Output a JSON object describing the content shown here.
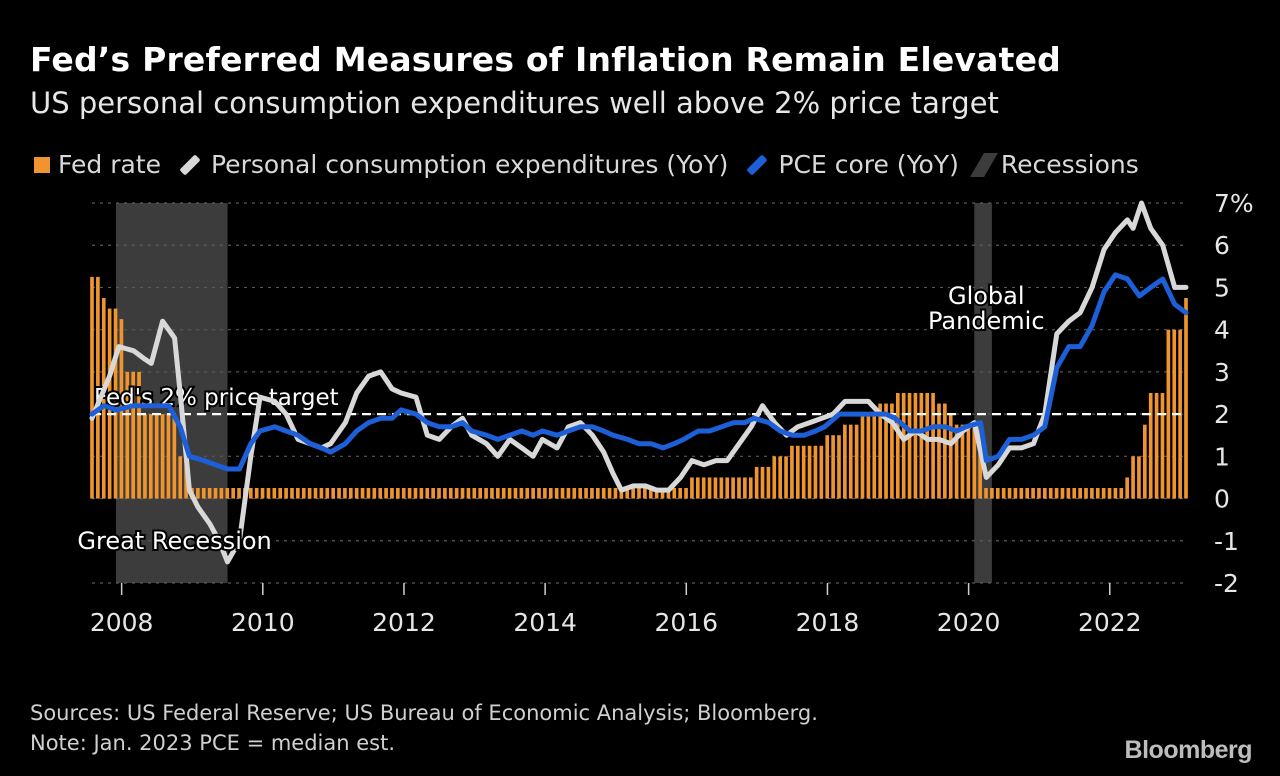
{
  "header": {
    "title": "Fed’s Preferred Measures of Inflation Remain Elevated",
    "subtitle": "US personal consumption expenditures well above 2% price target"
  },
  "legend": {
    "items": [
      {
        "label": "Fed rate",
        "color": "#f0952e"
      },
      {
        "label": "Personal consumption expenditures (YoY)",
        "color": "#d8d8d8"
      },
      {
        "label": "PCE core (YoY)",
        "color": "#1c5fd6"
      },
      {
        "label": "Recessions",
        "color": "#3c3c3c"
      }
    ]
  },
  "footer": {
    "sources": "Sources: US Federal Reserve; US Bureau of Economic Analysis; Bloomberg.",
    "note": "Note: Jan. 2023 PCE = median est.",
    "logo": "Bloomberg"
  },
  "chart_data": {
    "type": "bar",
    "xlim": [
      2007.58,
      2023.08
    ],
    "ylim": [
      -2,
      7
    ],
    "y_ticks": [
      7,
      6,
      5,
      4,
      3,
      2,
      1,
      0,
      -1,
      -2
    ],
    "y_tick_labels": [
      "7%",
      "6",
      "5",
      "4",
      "3",
      "2",
      "1",
      "0",
      "-1",
      "-2"
    ],
    "x_ticks": [
      2008,
      2010,
      2012,
      2014,
      2016,
      2018,
      2020,
      2022
    ],
    "x_tick_labels": [
      "2008",
      "2010",
      "2012",
      "2014",
      "2016",
      "2018",
      "2020",
      "2022"
    ],
    "grid": true,
    "colors": {
      "fed": "#f0952e",
      "pce": "#d8d8d8",
      "core": "#1c5fd6",
      "recession": "#3c3c3c",
      "target": "#ffffff"
    },
    "recessions": [
      {
        "start": 2007.92,
        "end": 2009.5
      },
      {
        "start": 2020.08,
        "end": 2020.33
      }
    ],
    "reference_line": {
      "value": 2,
      "label": "Fed's 2% price target"
    },
    "annotations": [
      {
        "label": "Great Recession",
        "x": 2008.75,
        "y": -1.0
      },
      {
        "label": "Global",
        "x": 2020.25,
        "y": 4.8
      },
      {
        "label": "Pandemic",
        "x": 2020.25,
        "y": 4.2
      }
    ],
    "fed_rate": {
      "name": "Fed rate",
      "points": [
        [
          2007.58,
          5.25
        ],
        [
          2007.67,
          4.75
        ],
        [
          2007.83,
          4.5
        ],
        [
          2007.92,
          4.25
        ],
        [
          2008.0,
          3.0
        ],
        [
          2008.17,
          3.0
        ],
        [
          2008.33,
          2.0
        ],
        [
          2008.83,
          1.0
        ],
        [
          2008.96,
          0.25
        ],
        [
          2015.92,
          0.25
        ],
        [
          2016.0,
          0.5
        ],
        [
          2016.92,
          0.75
        ],
        [
          2017.17,
          1.0
        ],
        [
          2017.42,
          1.25
        ],
        [
          2017.92,
          1.5
        ],
        [
          2018.17,
          1.75
        ],
        [
          2018.42,
          2.0
        ],
        [
          2018.67,
          2.25
        ],
        [
          2018.96,
          2.5
        ],
        [
          2019.58,
          2.25
        ],
        [
          2019.67,
          2.0
        ],
        [
          2019.83,
          1.75
        ],
        [
          2020.17,
          0.25
        ],
        [
          2022.17,
          0.5
        ],
        [
          2022.33,
          1.0
        ],
        [
          2022.42,
          1.75
        ],
        [
          2022.58,
          2.5
        ],
        [
          2022.75,
          3.25
        ],
        [
          2022.83,
          4.0
        ],
        [
          2023.0,
          4.5
        ],
        [
          2023.08,
          4.75
        ]
      ]
    },
    "series": [
      {
        "name": "Personal consumption expenditures (YoY)",
        "points": [
          [
            2007.58,
            1.9
          ],
          [
            2007.83,
            2.9
          ],
          [
            2007.96,
            3.6
          ],
          [
            2008.17,
            3.5
          ],
          [
            2008.33,
            3.3
          ],
          [
            2008.42,
            3.2
          ],
          [
            2008.58,
            4.2
          ],
          [
            2008.75,
            3.8
          ],
          [
            2008.83,
            2.5
          ],
          [
            2008.96,
            0.2
          ],
          [
            2009.08,
            -0.2
          ],
          [
            2009.25,
            -0.6
          ],
          [
            2009.38,
            -1.0
          ],
          [
            2009.5,
            -1.5
          ],
          [
            2009.67,
            -1.0
          ],
          [
            2009.83,
            1.0
          ],
          [
            2009.96,
            2.4
          ],
          [
            2010.17,
            2.3
          ],
          [
            2010.33,
            2.0
          ],
          [
            2010.5,
            1.4
          ],
          [
            2010.67,
            1.3
          ],
          [
            2010.83,
            1.2
          ],
          [
            2010.96,
            1.3
          ],
          [
            2011.17,
            1.8
          ],
          [
            2011.33,
            2.5
          ],
          [
            2011.5,
            2.9
          ],
          [
            2011.67,
            3.0
          ],
          [
            2011.83,
            2.6
          ],
          [
            2011.96,
            2.5
          ],
          [
            2012.17,
            2.4
          ],
          [
            2012.33,
            1.5
          ],
          [
            2012.5,
            1.4
          ],
          [
            2012.67,
            1.7
          ],
          [
            2012.83,
            1.9
          ],
          [
            2012.96,
            1.5
          ],
          [
            2013.17,
            1.3
          ],
          [
            2013.33,
            1.0
          ],
          [
            2013.5,
            1.4
          ],
          [
            2013.67,
            1.2
          ],
          [
            2013.83,
            1.0
          ],
          [
            2013.96,
            1.4
          ],
          [
            2014.17,
            1.2
          ],
          [
            2014.33,
            1.7
          ],
          [
            2014.5,
            1.8
          ],
          [
            2014.67,
            1.5
          ],
          [
            2014.83,
            1.1
          ],
          [
            2014.96,
            0.6
          ],
          [
            2015.08,
            0.2
          ],
          [
            2015.25,
            0.3
          ],
          [
            2015.42,
            0.3
          ],
          [
            2015.58,
            0.2
          ],
          [
            2015.75,
            0.2
          ],
          [
            2015.92,
            0.5
          ],
          [
            2016.08,
            0.9
          ],
          [
            2016.25,
            0.8
          ],
          [
            2016.42,
            0.9
          ],
          [
            2016.58,
            0.9
          ],
          [
            2016.75,
            1.3
          ],
          [
            2016.92,
            1.7
          ],
          [
            2017.08,
            2.2
          ],
          [
            2017.25,
            1.8
          ],
          [
            2017.42,
            1.5
          ],
          [
            2017.58,
            1.7
          ],
          [
            2017.75,
            1.8
          ],
          [
            2017.92,
            1.9
          ],
          [
            2018.08,
            2.0
          ],
          [
            2018.25,
            2.3
          ],
          [
            2018.42,
            2.3
          ],
          [
            2018.58,
            2.3
          ],
          [
            2018.75,
            2.0
          ],
          [
            2018.92,
            1.8
          ],
          [
            2019.08,
            1.4
          ],
          [
            2019.25,
            1.6
          ],
          [
            2019.42,
            1.4
          ],
          [
            2019.58,
            1.4
          ],
          [
            2019.75,
            1.3
          ],
          [
            2019.92,
            1.6
          ],
          [
            2020.08,
            1.8
          ],
          [
            2020.25,
            0.5
          ],
          [
            2020.42,
            0.8
          ],
          [
            2020.58,
            1.2
          ],
          [
            2020.75,
            1.2
          ],
          [
            2020.92,
            1.3
          ],
          [
            2021.08,
            2.0
          ],
          [
            2021.25,
            3.9
          ],
          [
            2021.42,
            4.2
          ],
          [
            2021.58,
            4.4
          ],
          [
            2021.75,
            5.0
          ],
          [
            2021.92,
            5.9
          ],
          [
            2022.08,
            6.3
          ],
          [
            2022.25,
            6.6
          ],
          [
            2022.33,
            6.4
          ],
          [
            2022.45,
            7.0
          ],
          [
            2022.58,
            6.4
          ],
          [
            2022.75,
            6.0
          ],
          [
            2022.92,
            5.0
          ],
          [
            2023.08,
            5.0
          ]
        ]
      },
      {
        "name": "PCE core (YoY)",
        "points": [
          [
            2007.58,
            2.0
          ],
          [
            2007.75,
            2.2
          ],
          [
            2007.92,
            2.1
          ],
          [
            2008.17,
            2.2
          ],
          [
            2008.42,
            2.2
          ],
          [
            2008.67,
            2.2
          ],
          [
            2008.83,
            1.7
          ],
          [
            2008.96,
            1.0
          ],
          [
            2009.17,
            0.9
          ],
          [
            2009.33,
            0.8
          ],
          [
            2009.5,
            0.7
          ],
          [
            2009.67,
            0.7
          ],
          [
            2009.83,
            1.3
          ],
          [
            2009.96,
            1.6
          ],
          [
            2010.17,
            1.7
          ],
          [
            2010.33,
            1.6
          ],
          [
            2010.5,
            1.5
          ],
          [
            2010.67,
            1.3
          ],
          [
            2010.83,
            1.2
          ],
          [
            2010.96,
            1.1
          ],
          [
            2011.17,
            1.3
          ],
          [
            2011.33,
            1.6
          ],
          [
            2011.5,
            1.8
          ],
          [
            2011.67,
            1.9
          ],
          [
            2011.83,
            1.9
          ],
          [
            2011.96,
            2.1
          ],
          [
            2012.17,
            2.0
          ],
          [
            2012.33,
            1.8
          ],
          [
            2012.5,
            1.7
          ],
          [
            2012.67,
            1.7
          ],
          [
            2012.83,
            1.8
          ],
          [
            2012.96,
            1.6
          ],
          [
            2013.17,
            1.5
          ],
          [
            2013.33,
            1.4
          ],
          [
            2013.5,
            1.5
          ],
          [
            2013.67,
            1.6
          ],
          [
            2013.83,
            1.5
          ],
          [
            2013.96,
            1.6
          ],
          [
            2014.17,
            1.5
          ],
          [
            2014.33,
            1.6
          ],
          [
            2014.5,
            1.7
          ],
          [
            2014.67,
            1.7
          ],
          [
            2014.83,
            1.6
          ],
          [
            2014.96,
            1.5
          ],
          [
            2015.17,
            1.4
          ],
          [
            2015.33,
            1.3
          ],
          [
            2015.5,
            1.3
          ],
          [
            2015.67,
            1.2
          ],
          [
            2015.83,
            1.3
          ],
          [
            2015.96,
            1.4
          ],
          [
            2016.17,
            1.6
          ],
          [
            2016.33,
            1.6
          ],
          [
            2016.5,
            1.7
          ],
          [
            2016.67,
            1.8
          ],
          [
            2016.83,
            1.8
          ],
          [
            2016.96,
            1.9
          ],
          [
            2017.17,
            1.8
          ],
          [
            2017.33,
            1.6
          ],
          [
            2017.5,
            1.5
          ],
          [
            2017.67,
            1.5
          ],
          [
            2017.83,
            1.6
          ],
          [
            2017.96,
            1.7
          ],
          [
            2018.17,
            2.0
          ],
          [
            2018.33,
            2.0
          ],
          [
            2018.5,
            2.0
          ],
          [
            2018.67,
            2.0
          ],
          [
            2018.83,
            2.0
          ],
          [
            2018.96,
            1.9
          ],
          [
            2019.17,
            1.6
          ],
          [
            2019.33,
            1.6
          ],
          [
            2019.5,
            1.7
          ],
          [
            2019.67,
            1.7
          ],
          [
            2019.83,
            1.6
          ],
          [
            2019.96,
            1.7
          ],
          [
            2020.17,
            1.8
          ],
          [
            2020.25,
            0.9
          ],
          [
            2020.42,
            1.0
          ],
          [
            2020.58,
            1.4
          ],
          [
            2020.75,
            1.4
          ],
          [
            2020.92,
            1.5
          ],
          [
            2021.08,
            1.7
          ],
          [
            2021.25,
            3.1
          ],
          [
            2021.42,
            3.6
          ],
          [
            2021.58,
            3.6
          ],
          [
            2021.75,
            4.1
          ],
          [
            2021.92,
            4.9
          ],
          [
            2022.08,
            5.3
          ],
          [
            2022.25,
            5.2
          ],
          [
            2022.42,
            4.8
          ],
          [
            2022.58,
            5.0
          ],
          [
            2022.75,
            5.2
          ],
          [
            2022.92,
            4.6
          ],
          [
            2023.08,
            4.4
          ]
        ]
      }
    ]
  }
}
